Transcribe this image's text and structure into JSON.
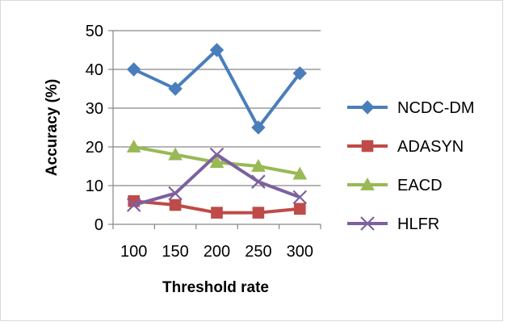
{
  "chart_data": {
    "type": "line",
    "xlabel": "Threshold rate",
    "ylabel": "Accuracy (%)",
    "categories": [
      "100",
      "150",
      "200",
      "250",
      "300"
    ],
    "ylim": [
      0,
      50
    ],
    "yticks": [
      0,
      10,
      20,
      30,
      40,
      50
    ],
    "grid": true,
    "legend_position": "right",
    "series": [
      {
        "name": "NCDC-DM",
        "values": [
          40,
          35,
          45,
          25,
          39
        ],
        "color": "#4A7EBB",
        "marker": "diamond"
      },
      {
        "name": "ADASYN",
        "values": [
          6,
          5,
          3,
          3,
          4
        ],
        "color": "#BE4B48",
        "marker": "square"
      },
      {
        "name": "EACD",
        "values": [
          20,
          18,
          16,
          15,
          13
        ],
        "color": "#98B954",
        "marker": "triangle"
      },
      {
        "name": "HLFR",
        "values": [
          5,
          8,
          18,
          11,
          7
        ],
        "color": "#7D60A0",
        "marker": "x"
      }
    ]
  }
}
